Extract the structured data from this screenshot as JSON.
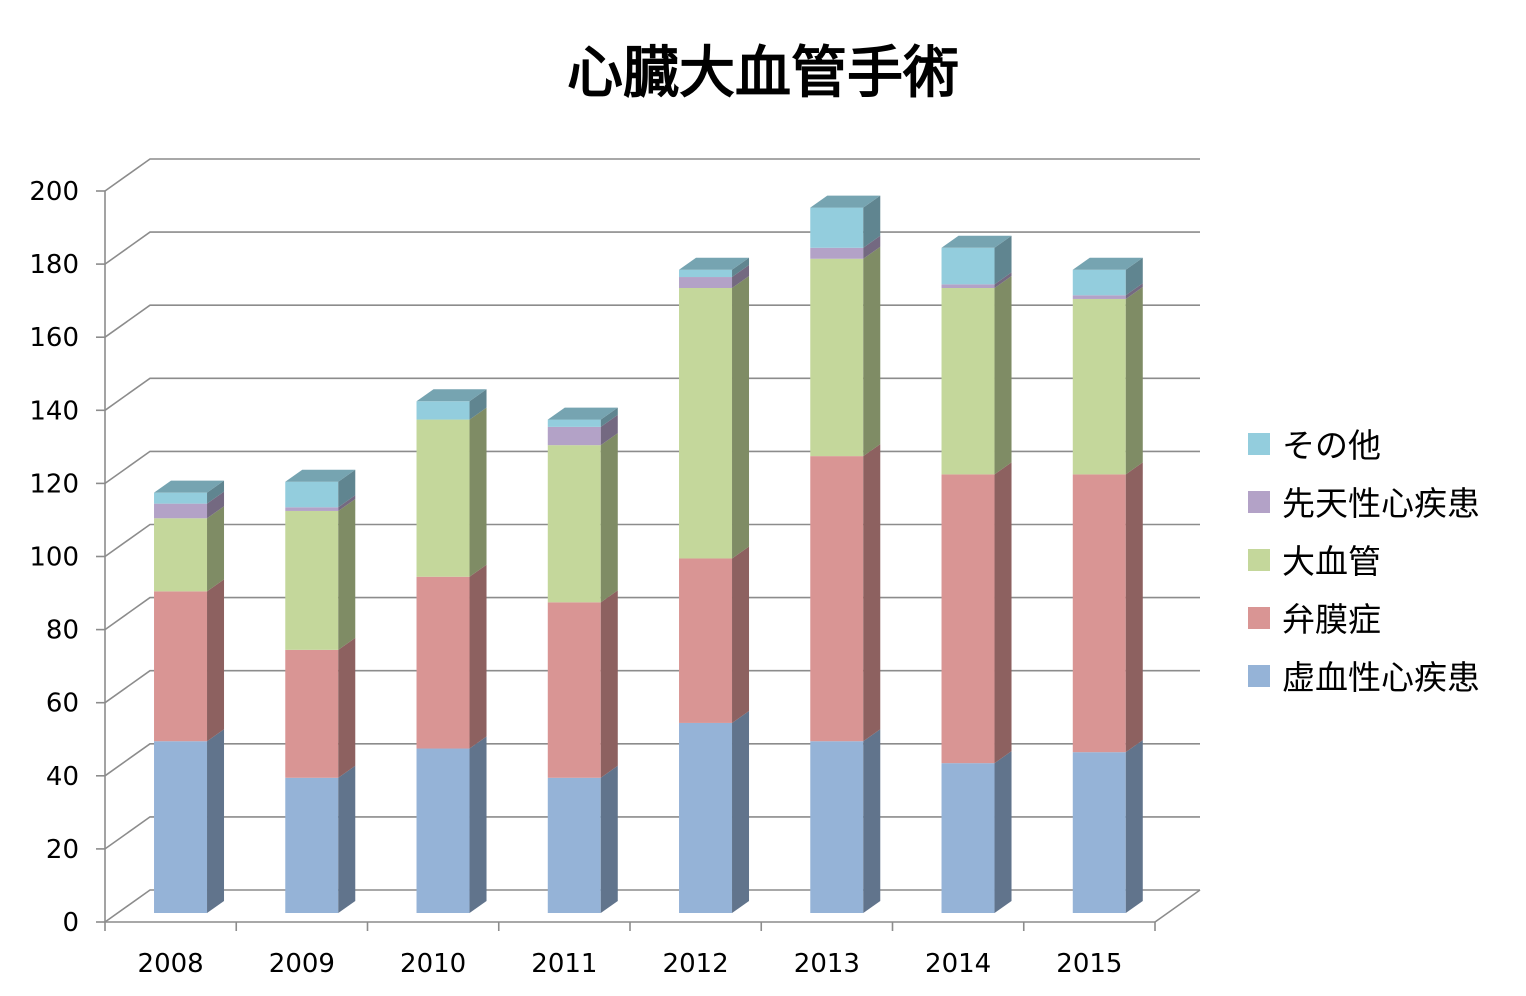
{
  "chart_data": {
    "type": "bar",
    "stacked": true,
    "three_d": true,
    "title": "心臓大血管手術",
    "xlabel": "",
    "ylabel": "",
    "categories": [
      "2008",
      "2009",
      "2010",
      "2011",
      "2012",
      "2013",
      "2014",
      "2015"
    ],
    "series": [
      {
        "name": "虚血性心疾患",
        "values": [
          47,
          37,
          45,
          37,
          52,
          47,
          41,
          44
        ],
        "color": "#95b3d7"
      },
      {
        "name": "弁膜症",
        "values": [
          41,
          35,
          47,
          48,
          45,
          78,
          79,
          76
        ],
        "color": "#d99594"
      },
      {
        "name": "大血管",
        "values": [
          20,
          38,
          43,
          43,
          74,
          54,
          51,
          48
        ],
        "color": "#c4d79b"
      },
      {
        "name": "先天性心疾患",
        "values": [
          4,
          1,
          0,
          5,
          3,
          3,
          1,
          1
        ],
        "color": "#b3a2c7"
      },
      {
        "name": "その他",
        "values": [
          3,
          7,
          5,
          2,
          2,
          11,
          10,
          7
        ],
        "color": "#93cddd"
      }
    ],
    "ylim": [
      0,
      200
    ],
    "yticks": [
      0,
      20,
      40,
      60,
      80,
      100,
      120,
      140,
      160,
      180,
      200
    ],
    "grid": true,
    "legend_position": "right"
  }
}
